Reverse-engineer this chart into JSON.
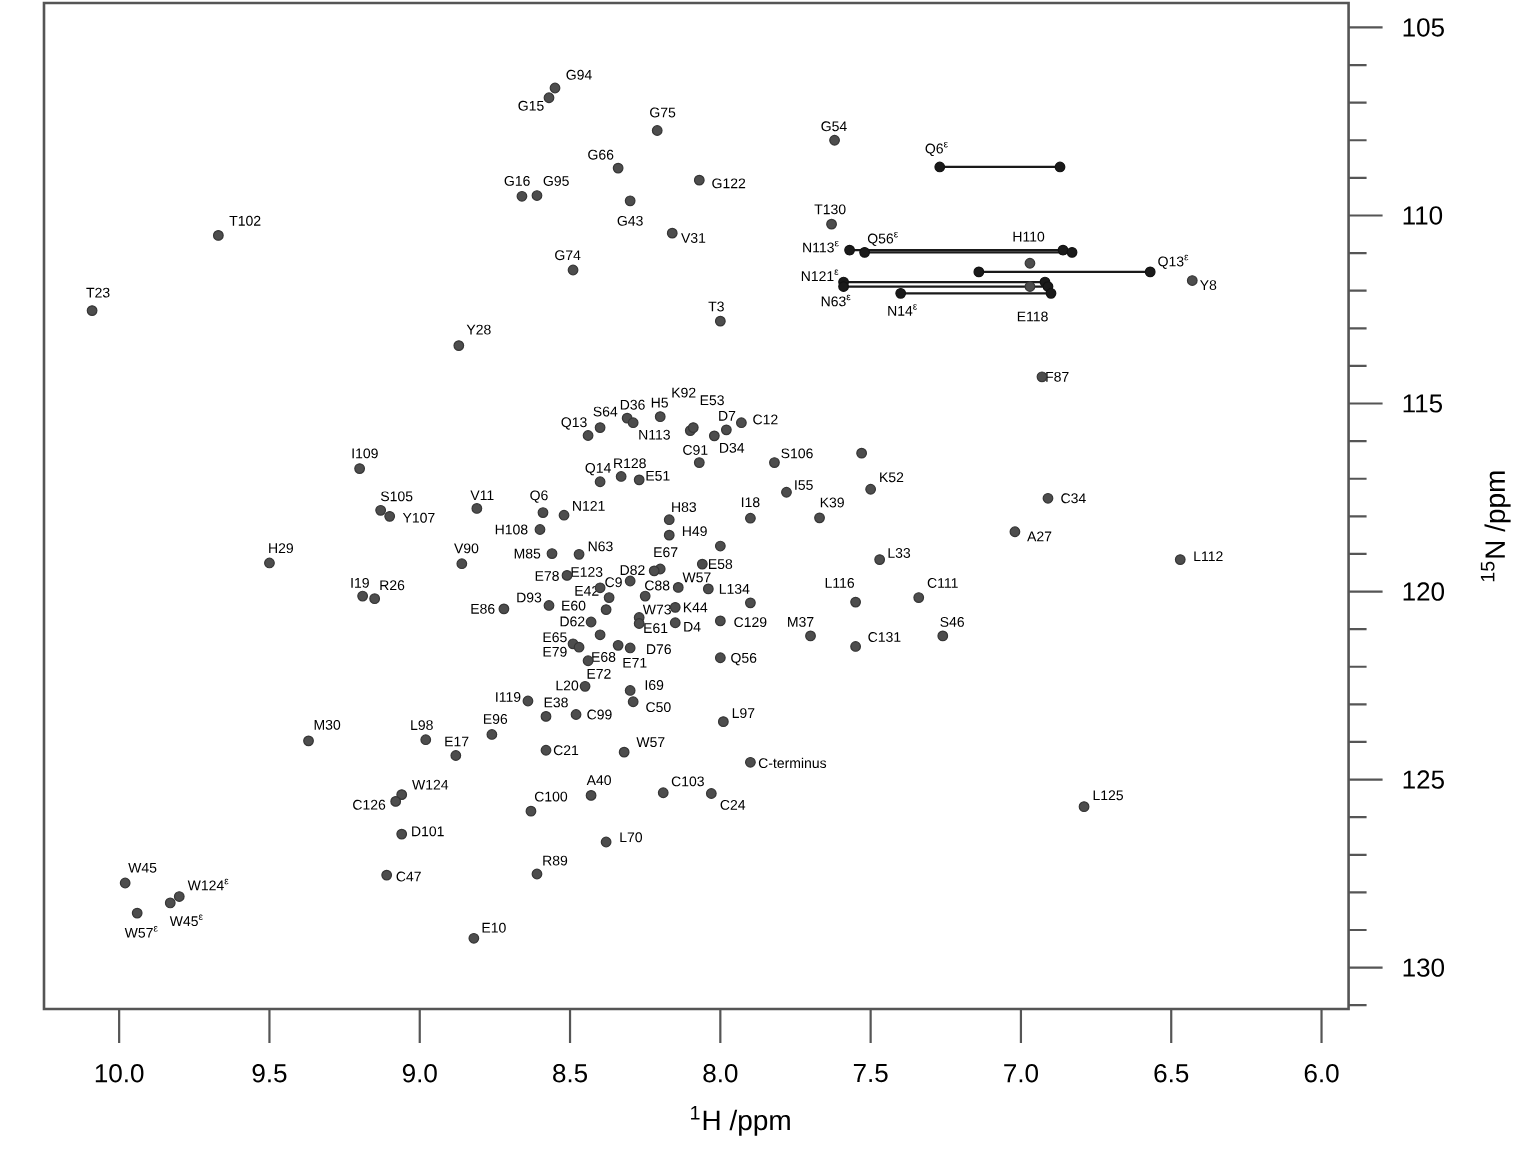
{
  "chart_data": {
    "type": "scatter",
    "xlabel": "$^{1}$H /ppm",
    "ylabel": "$^{15}$N /ppm",
    "xlim": [
      10.25,
      5.91
    ],
    "ylim": [
      131.1,
      104.35
    ],
    "xticks": [
      {
        "value": 10,
        "label": "10.0"
      },
      {
        "value": 9.5,
        "label": "9.5"
      },
      {
        "value": 9,
        "label": "9.0"
      },
      {
        "value": 8.5,
        "label": "8.5"
      },
      {
        "value": 8,
        "label": "8.0"
      },
      {
        "value": 7.5,
        "label": "7.5"
      },
      {
        "value": 7,
        "label": "7.0"
      },
      {
        "value": 6.5,
        "label": "6.5"
      },
      {
        "value": 6,
        "label": "6.0"
      }
    ],
    "yticks": [
      105,
      {
        "value": 106,
        "label": null
      },
      {
        "value": 107,
        "label": null
      },
      {
        "value": 108,
        "label": null
      },
      {
        "value": 109,
        "label": null
      },
      110,
      {
        "value": 111,
        "label": null
      },
      {
        "value": 112,
        "label": null
      },
      {
        "value": 113,
        "label": null
      },
      {
        "value": 114,
        "label": null
      },
      115,
      {
        "value": 116,
        "label": null
      },
      {
        "value": 117,
        "label": null
      },
      {
        "value": 118,
        "label": null
      },
      {
        "value": 119,
        "label": null
      },
      120,
      {
        "value": 121,
        "label": null
      },
      {
        "value": 122,
        "label": null
      },
      {
        "value": 123,
        "label": null
      },
      {
        "value": 124,
        "label": null
      },
      125,
      {
        "value": 126,
        "label": null
      },
      {
        "value": 127,
        "label": null
      },
      {
        "value": 128,
        "label": null
      },
      {
        "value": 129,
        "label": null
      },
      130,
      {
        "value": 131,
        "label": null
      }
    ],
    "marker": "circle",
    "series": [
      {
        "color": "#4d4d4d",
        "x": [
          9.67,
          10.09,
          8.66,
          8.61,
          8.87,
          9.2,
          9.13,
          9.1,
          8.81,
          9.5,
          8.86,
          8.6,
          8.59,
          8.56,
          8.57,
          8.55,
          8.21,
          8.34,
          8.3,
          8.07,
          8.16,
          8.49,
          8.0,
          7.62,
          7.63,
          8.44,
          8.4,
          8.31,
          8.29,
          8.2,
          8.1,
          8.09,
          7.98,
          7.93,
          8.02,
          8.07,
          7.82,
          8.4,
          8.33,
          8.27,
          7.78,
          7.5,
          8.52,
          7.9,
          7.67,
          8.17,
          8.17,
          8.47,
          7.47,
          8.2,
          8.22,
          8.06,
          6.97,
          6.97,
          6.43,
          6.93,
          6.91,
          7.02,
          6.47,
          9.19,
          9.15,
          8.72,
          8.64,
          9.37,
          8.98,
          8.76,
          8.88,
          9.06,
          9.08,
          9.06,
          9.11,
          8.82,
          9.98,
          9.8,
          9.83,
          9.94,
          8.51,
          8.3,
          8.25,
          8.14,
          8.04,
          8.27,
          8.15,
          8.15,
          8.27,
          8.0,
          7.7,
          7.55,
          7.26,
          7.55,
          7.34,
          8.0,
          8.3,
          8.29,
          7.99,
          8.45,
          8.58,
          8.48,
          8.58,
          8.32,
          7.9,
          8.43,
          8.63,
          8.19,
          8.03,
          8.38,
          8.61,
          8.44,
          8.4,
          8.34,
          8.3,
          8.49,
          8.47,
          8.43,
          8.38,
          8.37,
          8.4,
          8.57,
          6.79,
          7.53,
          8.0,
          7.9
        ],
        "values": [
          110.53,
          112.53,
          109.49,
          109.47,
          113.46,
          116.73,
          117.84,
          118.0,
          117.79,
          119.24,
          119.26,
          118.35,
          117.9,
          118.99,
          106.87,
          106.61,
          107.74,
          108.74,
          109.61,
          109.06,
          110.47,
          111.45,
          112.81,
          108.0,
          110.23,
          115.85,
          115.64,
          115.39,
          115.51,
          115.35,
          115.72,
          115.64,
          115.7,
          115.51,
          115.86,
          116.57,
          116.57,
          117.08,
          116.94,
          117.03,
          117.36,
          117.28,
          117.97,
          118.05,
          118.04,
          118.09,
          118.5,
          119.01,
          119.15,
          119.4,
          119.45,
          119.27,
          111.27,
          111.89,
          111.73,
          114.29,
          117.52,
          118.41,
          119.15,
          120.12,
          120.19,
          120.46,
          122.91,
          123.97,
          123.94,
          123.8,
          124.36,
          125.4,
          125.58,
          126.45,
          127.54,
          129.22,
          127.75,
          128.11,
          128.28,
          128.55,
          119.57,
          119.72,
          120.12,
          119.89,
          119.93,
          120.69,
          120.42,
          120.83,
          120.85,
          120.78,
          121.18,
          121.46,
          121.18,
          120.28,
          120.16,
          121.76,
          122.63,
          122.93,
          123.46,
          122.52,
          123.32,
          123.27,
          124.22,
          124.27,
          124.54,
          125.42,
          125.84,
          125.35,
          125.37,
          126.66,
          127.51,
          121.84,
          121.15,
          121.43,
          121.5,
          121.39,
          121.48,
          120.81,
          120.48,
          120.16,
          119.9,
          120.37,
          125.72,
          116.32,
          118.79,
          120.3
        ]
      },
      {
        "type": "line",
        "color": "#1a1a1a",
        "x": [
          7.27,
          6.87
        ],
        "values": [
          108.71,
          108.71
        ]
      },
      {
        "type": "line",
        "color": "#1a1a1a",
        "x": [
          7.57,
          6.86
        ],
        "values": [
          110.92,
          110.92
        ]
      },
      {
        "type": "line",
        "color": "#1a1a1a",
        "x": [
          7.52,
          6.83
        ],
        "values": [
          110.98,
          110.98
        ]
      },
      {
        "type": "line",
        "color": "#1a1a1a",
        "x": [
          7.14,
          6.57
        ],
        "values": [
          111.5,
          111.5
        ]
      },
      {
        "type": "line",
        "color": "#1a1a1a",
        "x": [
          7.59,
          6.92
        ],
        "values": [
          111.77,
          111.77
        ]
      },
      {
        "type": "line",
        "color": "#1a1a1a",
        "x": [
          7.59,
          6.91
        ],
        "values": [
          111.89,
          111.89
        ]
      },
      {
        "type": "line",
        "color": "#1a1a1a",
        "x": [
          7.4,
          6.9
        ],
        "values": [
          112.07,
          112.07
        ]
      }
    ],
    "annotations": [
      {
        "text": "T102",
        "x": 9.67,
        "y": 110.53
      },
      {
        "text": "T23",
        "x": 10.09,
        "y": 112.53
      },
      {
        "text": "G16",
        "x": 8.66,
        "y": 109.49
      },
      {
        "text": "G95",
        "x": 8.61,
        "y": 109.47
      },
      {
        "text": "Y28",
        "x": 8.87,
        "y": 113.46
      },
      {
        "text": "I109",
        "x": 9.2,
        "y": 116.73
      },
      {
        "text": "S105",
        "x": 9.13,
        "y": 117.84
      },
      {
        "text": "Y107",
        "x": 9.1,
        "y": 118.0
      },
      {
        "text": "V11",
        "x": 8.81,
        "y": 117.79
      },
      {
        "text": "H29",
        "x": 9.5,
        "y": 119.24
      },
      {
        "text": "V90",
        "x": 8.86,
        "y": 119.26
      },
      {
        "text": "H108",
        "x": 8.6,
        "y": 118.35
      },
      {
        "text": "Q6",
        "x": 8.59,
        "y": 117.9
      },
      {
        "text": "M85",
        "x": 8.56,
        "y": 118.99
      },
      {
        "text": "G15",
        "x": 8.57,
        "y": 106.87
      },
      {
        "text": "G94",
        "x": 8.55,
        "y": 106.61
      },
      {
        "text": "G75",
        "x": 8.21,
        "y": 107.74
      },
      {
        "text": "G66",
        "x": 8.34,
        "y": 108.74
      },
      {
        "text": "G43",
        "x": 8.3,
        "y": 109.61
      },
      {
        "text": "G122",
        "x": 8.07,
        "y": 109.06
      },
      {
        "text": "V31",
        "x": 8.16,
        "y": 110.47
      },
      {
        "text": "G74",
        "x": 8.49,
        "y": 111.45
      },
      {
        "text": "T3",
        "x": 8.0,
        "y": 112.81
      },
      {
        "text": "G54",
        "x": 7.62,
        "y": 108.0
      },
      {
        "text": "T130",
        "x": 7.63,
        "y": 110.23
      },
      {
        "text": "Q13",
        "x": 8.44,
        "y": 115.85
      },
      {
        "text": "S64",
        "x": 8.4,
        "y": 115.64
      },
      {
        "text": "D36",
        "x": 8.31,
        "y": 115.39
      },
      {
        "text": "N113",
        "x": 8.29,
        "y": 115.51
      },
      {
        "text": "H5",
        "x": 8.2,
        "y": 115.35
      },
      {
        "text": "K92",
        "x": 8.1,
        "y": 115.72
      },
      {
        "text": "E53",
        "x": 8.09,
        "y": 115.64
      },
      {
        "text": "D7",
        "x": 7.98,
        "y": 115.7
      },
      {
        "text": "C12",
        "x": 7.93,
        "y": 115.51
      },
      {
        "text": "D34",
        "x": 8.02,
        "y": 115.86
      },
      {
        "text": "C91",
        "x": 8.07,
        "y": 116.57
      },
      {
        "text": "S106",
        "x": 7.82,
        "y": 116.57
      },
      {
        "text": "Q14",
        "x": 8.4,
        "y": 117.08
      },
      {
        "text": "R128",
        "x": 8.33,
        "y": 116.94
      },
      {
        "text": "E51",
        "x": 8.27,
        "y": 117.03
      },
      {
        "text": "I55",
        "x": 7.78,
        "y": 117.36
      },
      {
        "text": "K52",
        "x": 7.5,
        "y": 117.28
      },
      {
        "text": "N121",
        "x": 8.52,
        "y": 117.97
      },
      {
        "text": "I18",
        "x": 7.9,
        "y": 118.05
      },
      {
        "text": "K39",
        "x": 7.67,
        "y": 118.04
      },
      {
        "text": "H83",
        "x": 8.17,
        "y": 118.09
      },
      {
        "text": "H49",
        "x": 8.17,
        "y": 118.5
      },
      {
        "text": "N63",
        "x": 8.47,
        "y": 119.01
      },
      {
        "text": "L33",
        "x": 7.47,
        "y": 119.15
      },
      {
        "text": "E67",
        "x": 8.2,
        "y": 119.4
      },
      {
        "text": "D82",
        "x": 8.22,
        "y": 119.45
      },
      {
        "text": "E58",
        "x": 8.06,
        "y": 119.27
      },
      {
        "text": "H110",
        "x": 6.97,
        "y": 111.27
      },
      {
        "text": "E118",
        "x": 6.97,
        "y": 111.89
      },
      {
        "text": "Y8",
        "x": 6.43,
        "y": 111.73
      },
      {
        "text": "F87",
        "x": 6.93,
        "y": 114.29
      },
      {
        "text": "C34",
        "x": 6.91,
        "y": 117.52
      },
      {
        "text": "A27",
        "x": 7.02,
        "y": 118.41
      },
      {
        "text": "L112",
        "x": 6.47,
        "y": 119.15
      },
      {
        "text": "I19",
        "x": 9.19,
        "y": 120.12
      },
      {
        "text": "R26",
        "x": 9.15,
        "y": 120.19
      },
      {
        "text": "E86",
        "x": 8.72,
        "y": 120.46
      },
      {
        "text": "I119",
        "x": 8.64,
        "y": 122.91
      },
      {
        "text": "M30",
        "x": 9.37,
        "y": 123.97
      },
      {
        "text": "L98",
        "x": 8.98,
        "y": 123.94
      },
      {
        "text": "E96",
        "x": 8.76,
        "y": 123.8
      },
      {
        "text": "E17",
        "x": 8.88,
        "y": 124.36
      },
      {
        "text": "W124",
        "x": 9.06,
        "y": 125.4
      },
      {
        "text": "C126",
        "x": 9.08,
        "y": 125.58
      },
      {
        "text": "D101",
        "x": 9.06,
        "y": 126.45
      },
      {
        "text": "C47",
        "x": 9.11,
        "y": 127.54
      },
      {
        "text": "E10",
        "x": 8.82,
        "y": 129.22
      },
      {
        "text": "W45",
        "x": 9.98,
        "y": 127.75
      },
      {
        "text": "W124$^{ε}$",
        "x": 9.8,
        "y": 128.11
      },
      {
        "text": "W45$^{ε}$",
        "x": 9.83,
        "y": 128.28
      },
      {
        "text": "W57$^{ε}$",
        "x": 9.94,
        "y": 128.55
      },
      {
        "text": "E78",
        "x": 8.51,
        "y": 119.57
      },
      {
        "text": "C9",
        "x": 8.3,
        "y": 119.72
      },
      {
        "text": "C88",
        "x": 8.25,
        "y": 120.12
      },
      {
        "text": "W57",
        "x": 8.14,
        "y": 119.89
      },
      {
        "text": "L134",
        "x": 8.04,
        "y": 119.93
      },
      {
        "text": "W73",
        "x": 8.27,
        "y": 120.69
      },
      {
        "text": "K44",
        "x": 8.15,
        "y": 120.42
      },
      {
        "text": "D4",
        "x": 8.15,
        "y": 120.83
      },
      {
        "text": "E61",
        "x": 8.27,
        "y": 120.85
      },
      {
        "text": "C129",
        "x": 8.0,
        "y": 120.78
      },
      {
        "text": "M37",
        "x": 7.7,
        "y": 121.18
      },
      {
        "text": "C131",
        "x": 7.55,
        "y": 121.46
      },
      {
        "text": "S46",
        "x": 7.26,
        "y": 121.18
      },
      {
        "text": "L116",
        "x": 7.55,
        "y": 120.28
      },
      {
        "text": "C111",
        "x": 7.34,
        "y": 120.16
      },
      {
        "text": "Q56",
        "x": 8.0,
        "y": 121.76
      },
      {
        "text": "I69",
        "x": 8.3,
        "y": 122.63
      },
      {
        "text": "C50",
        "x": 8.29,
        "y": 122.93
      },
      {
        "text": "L97",
        "x": 7.99,
        "y": 123.46
      },
      {
        "text": "L20",
        "x": 8.45,
        "y": 122.52
      },
      {
        "text": "E38",
        "x": 8.58,
        "y": 123.32
      },
      {
        "text": "C99",
        "x": 8.48,
        "y": 123.27
      },
      {
        "text": "C21",
        "x": 8.58,
        "y": 124.22
      },
      {
        "text": "W57",
        "x": 8.32,
        "y": 124.27
      },
      {
        "text": "C-terminus",
        "x": 7.9,
        "y": 124.54
      },
      {
        "text": "A40",
        "x": 8.43,
        "y": 125.42
      },
      {
        "text": "C100",
        "x": 8.63,
        "y": 125.84
      },
      {
        "text": "C103",
        "x": 8.19,
        "y": 125.35
      },
      {
        "text": "C24",
        "x": 8.03,
        "y": 125.37
      },
      {
        "text": "L70",
        "x": 8.38,
        "y": 126.66
      },
      {
        "text": "R89",
        "x": 8.61,
        "y": 127.51
      },
      {
        "text": "E72",
        "x": 8.44,
        "y": 121.84
      },
      {
        "text": "E68",
        "x": 8.4,
        "y": 121.15
      },
      {
        "text": "E71",
        "x": 8.34,
        "y": 121.43
      },
      {
        "text": "D76",
        "x": 8.3,
        "y": 121.5
      },
      {
        "text": "E65",
        "x": 8.49,
        "y": 121.39
      },
      {
        "text": "E79",
        "x": 8.47,
        "y": 121.48
      },
      {
        "text": "D62",
        "x": 8.43,
        "y": 120.81
      },
      {
        "text": "E60",
        "x": 8.38,
        "y": 120.48
      },
      {
        "text": "E42",
        "x": 8.37,
        "y": 120.16
      },
      {
        "text": "E123",
        "x": 8.4,
        "y": 119.9
      },
      {
        "text": "D93",
        "x": 8.57,
        "y": 120.37
      },
      {
        "text": "L125",
        "x": 6.79,
        "y": 125.72
      },
      {
        "text": "Q6$^{ε}$",
        "x": 7.27,
        "y": 108.71
      },
      {
        "text": "N113$^{ε}$",
        "x": 7.57,
        "y": 110.92
      },
      {
        "text": "Q56$^{ε}$",
        "x": 7.52,
        "y": 110.98
      },
      {
        "text": "Q13$^{ε}$",
        "x": 6.57,
        "y": 111.5
      },
      {
        "text": "N121$^{ε}$",
        "x": 7.59,
        "y": 111.77
      },
      {
        "text": "N63$^{ε}$",
        "x": 7.59,
        "y": 111.89
      },
      {
        "text": "N14$^{ε}$",
        "x": 7.4,
        "y": 112.07
      }
    ]
  }
}
